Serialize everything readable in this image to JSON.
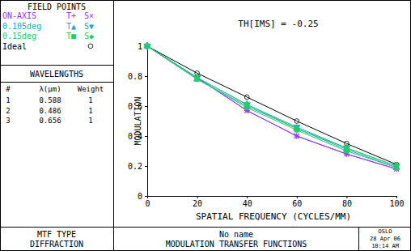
{
  "chart_data": {
    "type": "line",
    "title": "TH[IMS] = -0.25",
    "x_label": "SPATIAL FREQUENCY (CYCLES/MM)",
    "y_label": "MODULATION",
    "x": [
      0,
      20,
      40,
      60,
      80,
      100
    ],
    "xlim": [
      0,
      100
    ],
    "xticks": [
      0,
      20,
      40,
      60,
      80,
      100
    ],
    "ylim": [
      0,
      1
    ],
    "yticks": [
      0,
      0.2,
      0.4,
      0.6,
      0.8,
      1
    ],
    "grid": false,
    "legend_title": "FIELD POINTS",
    "fields": [
      {
        "name": "ON-AXIS",
        "color": "#9933ff",
        "series": [
          {
            "name": "T+",
            "marker": "plus",
            "values": [
              1,
              0.79,
              0.57,
              0.4,
              0.28,
              0.18
            ]
          },
          {
            "name": "S×",
            "marker": "cross",
            "values": [
              1,
              0.79,
              0.57,
              0.4,
              0.28,
              0.18
            ]
          }
        ]
      },
      {
        "name": "0.105deg",
        "color": "#1fa3c8",
        "series": [
          {
            "name": "T▲",
            "marker": "triangle",
            "values": [
              1,
              0.78,
              0.6,
              0.45,
              0.31,
              0.19
            ]
          },
          {
            "name": "S▼",
            "marker": "triangle-down",
            "values": [
              1,
              0.79,
              0.61,
              0.46,
              0.32,
              0.2
            ]
          }
        ]
      },
      {
        "name": "0.15deg",
        "color": "#22cc66",
        "series": [
          {
            "name": "T■",
            "marker": "square",
            "values": [
              1,
              0.78,
              0.59,
              0.44,
              0.3,
              0.19
            ]
          },
          {
            "name": "S◆",
            "marker": "diamond",
            "values": [
              1,
              0.79,
              0.61,
              0.45,
              0.32,
              0.2
            ]
          }
        ]
      }
    ],
    "ideal": {
      "name": "Ideal",
      "color": "#000000",
      "marker": "circle",
      "values": [
        1,
        0.82,
        0.66,
        0.5,
        0.35,
        0.21
      ]
    },
    "wavelengths": {
      "title": "WAVELENGTHS",
      "columns": [
        "#",
        "λ(µm)",
        "Weight"
      ],
      "rows": [
        [
          1,
          0.588,
          1
        ],
        [
          2,
          0.486,
          1
        ],
        [
          3,
          0.656,
          1
        ]
      ]
    },
    "mtf_type_title": "MTF TYPE",
    "mtf_type": "DIFFRACTION",
    "lens_name": "No name",
    "footer_title": "MODULATION TRANSFER FUNCTIONS",
    "program": "OSLO",
    "date": "28 Apr 06",
    "time": "10:14 AM"
  }
}
